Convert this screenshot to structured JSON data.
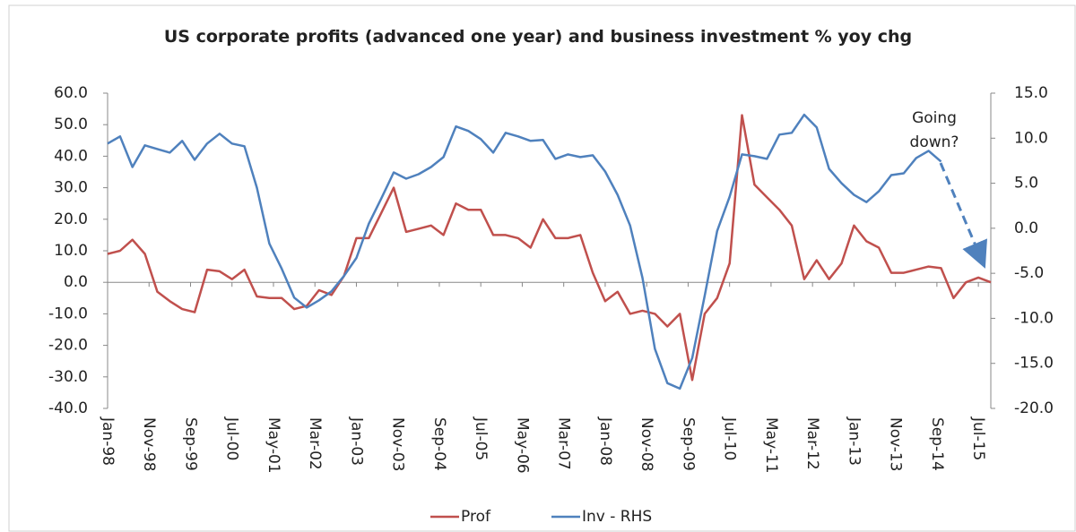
{
  "chart_data": {
    "type": "line",
    "title": "US corporate profits (advanced one year) and business investment % yoy chg",
    "x": [
      "1998-01",
      "1998-04",
      "1998-07",
      "1998-10",
      "1999-01",
      "1999-04",
      "1999-07",
      "1999-10",
      "2000-01",
      "2000-04",
      "2000-07",
      "2000-10",
      "2001-01",
      "2001-04",
      "2001-07",
      "2001-10",
      "2002-01",
      "2002-04",
      "2002-07",
      "2002-10",
      "2003-01",
      "2003-04",
      "2003-07",
      "2003-10",
      "2004-01",
      "2004-04",
      "2004-07",
      "2004-10",
      "2005-01",
      "2005-04",
      "2005-07",
      "2005-10",
      "2006-01",
      "2006-04",
      "2006-07",
      "2006-10",
      "2007-01",
      "2007-04",
      "2007-07",
      "2007-10",
      "2008-01",
      "2008-04",
      "2008-07",
      "2008-10",
      "2009-01",
      "2009-04",
      "2009-07",
      "2009-10",
      "2010-01",
      "2010-04",
      "2010-07",
      "2010-10",
      "2011-01",
      "2011-04",
      "2011-07",
      "2011-10",
      "2012-01",
      "2012-04",
      "2012-07",
      "2012-10",
      "2013-01",
      "2013-04",
      "2013-07",
      "2013-10",
      "2014-01",
      "2014-04",
      "2014-07",
      "2014-10",
      "2015-01",
      "2015-04",
      "2015-07",
      "2015-10"
    ],
    "xlim": [
      "1998-01",
      "2015-10"
    ],
    "xticks": [
      {
        "value": "1998-01",
        "label": "Jan-98"
      },
      {
        "value": "1998-11",
        "label": "Nov-98"
      },
      {
        "value": "1999-09",
        "label": "Sep-99"
      },
      {
        "value": "2000-07",
        "label": "Jul-00"
      },
      {
        "value": "2001-05",
        "label": "May-01"
      },
      {
        "value": "2002-03",
        "label": "Mar-02"
      },
      {
        "value": "2003-01",
        "label": "Jan-03"
      },
      {
        "value": "2003-11",
        "label": "Nov-03"
      },
      {
        "value": "2004-09",
        "label": "Sep-04"
      },
      {
        "value": "2005-07",
        "label": "Jul-05"
      },
      {
        "value": "2006-05",
        "label": "May-06"
      },
      {
        "value": "2007-03",
        "label": "Mar-07"
      },
      {
        "value": "2008-01",
        "label": "Jan-08"
      },
      {
        "value": "2008-11",
        "label": "Nov-08"
      },
      {
        "value": "2009-09",
        "label": "Sep-09"
      },
      {
        "value": "2010-07",
        "label": "Jul-10"
      },
      {
        "value": "2011-05",
        "label": "May-11"
      },
      {
        "value": "2012-03",
        "label": "Mar-12"
      },
      {
        "value": "2013-01",
        "label": "Jan-13"
      },
      {
        "value": "2013-11",
        "label": "Nov-13"
      },
      {
        "value": "2014-09",
        "label": "Sep-14"
      },
      {
        "value": "2015-07",
        "label": "Jul-15"
      }
    ],
    "ylim": [
      -40,
      60
    ],
    "yticks": [
      {
        "value": -40,
        "label": "-40.0"
      },
      {
        "value": -30,
        "label": "-30.0"
      },
      {
        "value": -20,
        "label": "-20.0"
      },
      {
        "value": -10,
        "label": "-10.0"
      },
      {
        "value": 0,
        "label": "0.0"
      },
      {
        "value": 10,
        "label": "10.0"
      },
      {
        "value": 20,
        "label": "20.0"
      },
      {
        "value": 30,
        "label": "30.0"
      },
      {
        "value": 40,
        "label": "40.0"
      },
      {
        "value": 50,
        "label": "50.0"
      },
      {
        "value": 60,
        "label": "60.0"
      }
    ],
    "y2lim": [
      -20,
      15
    ],
    "y2ticks": [
      {
        "value": -20,
        "label": "-20.0"
      },
      {
        "value": -15,
        "label": "-15.0"
      },
      {
        "value": -10,
        "label": "-10.0"
      },
      {
        "value": -5,
        "label": "-5.0"
      },
      {
        "value": 0,
        "label": "0.0"
      },
      {
        "value": 5,
        "label": "5.0"
      },
      {
        "value": 10,
        "label": "10.0"
      },
      {
        "value": 15,
        "label": "15.0"
      }
    ],
    "grid": false,
    "legend": "bottom",
    "annotations": [
      [
        "Going",
        "down?"
      ]
    ],
    "series": [
      {
        "name": "Prof",
        "color": "#c0504d",
        "values": [
          9,
          10,
          13.5,
          9,
          -3,
          -6,
          -8.5,
          -9.5,
          4,
          3.5,
          1,
          4,
          -4.5,
          -5,
          -5,
          -8.5,
          -7.5,
          -2.5,
          -4,
          2,
          14,
          14,
          22,
          30,
          16,
          17,
          18,
          15,
          25,
          23,
          23,
          15,
          15,
          14,
          11,
          20,
          14,
          14,
          15,
          3,
          -6,
          -3,
          -10,
          -9,
          -10,
          -14,
          -10,
          -31,
          -10,
          -5,
          6,
          53,
          31,
          27,
          23,
          18,
          1,
          7,
          1,
          6,
          18,
          13,
          11,
          3,
          3,
          4,
          5,
          4.5,
          -5,
          0,
          1.5,
          0
        ]
      },
      {
        "name": "Inv - RHS",
        "color": "#4f81bd",
        "axis": "y2",
        "values": [
          9.4,
          10.2,
          6.8,
          9.2,
          8.8,
          8.4,
          9.7,
          7.6,
          9.4,
          10.5,
          9.4,
          9.1,
          4.5,
          -1.7,
          -4.5,
          -7.7,
          -8.8,
          -8,
          -7,
          -5.3,
          -3.3,
          0.5,
          3.3,
          6.2,
          5.5,
          6,
          6.8,
          7.9,
          11.3,
          10.8,
          9.9,
          8.4,
          10.6,
          10.2,
          9.7,
          9.8,
          7.7,
          8.2,
          7.9,
          8.1,
          6.3,
          3.7,
          0.3,
          -5.5,
          -13.4,
          -17.2,
          -17.8,
          -14.4,
          -7.5,
          -0.3,
          3.5,
          8.2,
          8,
          7.7,
          10.4,
          10.6,
          12.6,
          11.2,
          6.6,
          5,
          3.7,
          2.9,
          4.1,
          5.9,
          6.1,
          7.8,
          8.6,
          7.4,
          null,
          null,
          null,
          null
        ]
      }
    ]
  }
}
